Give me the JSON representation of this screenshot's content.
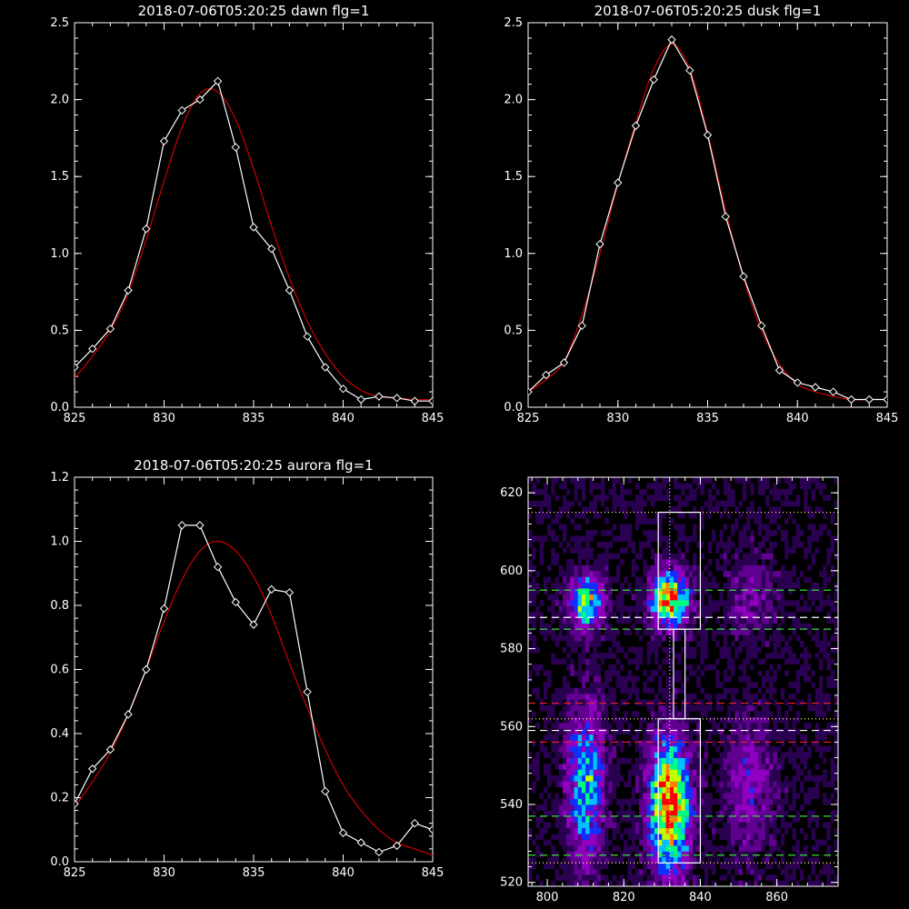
{
  "chart_data": [
    {
      "type": "line",
      "title": "2018-07-06T05:20:25 dawn flg=1",
      "xlim": [
        825,
        845
      ],
      "ylim": [
        0,
        2.5
      ],
      "xticks": [
        "825",
        "830",
        "835",
        "840",
        "845"
      ],
      "yticks": [
        "0.0",
        "0.5",
        "1.0",
        "1.5",
        "2.0",
        "2.5"
      ],
      "series": [
        {
          "x": [
            825,
            826,
            827,
            828,
            829,
            830,
            831,
            832,
            833,
            834,
            835,
            836,
            837,
            838,
            839,
            840,
            841,
            842,
            843,
            844,
            845
          ],
          "values": [
            0.26,
            0.38,
            0.51,
            0.76,
            1.16,
            1.73,
            1.93,
            2.0,
            2.12,
            1.69,
            1.17,
            1.03,
            0.76,
            0.46,
            0.26,
            0.12,
            0.05,
            0.07,
            0.06,
            0.04,
            0.04
          ],
          "color": "#ffffff",
          "marker": "diamond"
        },
        {
          "x": [
            825,
            826,
            827,
            828,
            829,
            830,
            831,
            832,
            833,
            834,
            835,
            836,
            837,
            838,
            839,
            840,
            841,
            842,
            843,
            844,
            845
          ],
          "values": [
            0.19,
            0.33,
            0.5,
            0.74,
            1.09,
            1.47,
            1.82,
            2.04,
            2.05,
            1.87,
            1.55,
            1.18,
            0.84,
            0.56,
            0.35,
            0.2,
            0.11,
            0.07,
            0.06,
            0.05,
            0.05
          ],
          "color": "#cc0000"
        }
      ]
    },
    {
      "type": "line",
      "title": "2018-07-06T05:20:25 dusk flg=1",
      "xlim": [
        825,
        845
      ],
      "ylim": [
        0,
        2.5
      ],
      "xticks": [
        "825",
        "830",
        "835",
        "840",
        "845"
      ],
      "yticks": [
        "0.0",
        "0.5",
        "1.0",
        "1.5",
        "2.0",
        "2.5"
      ],
      "series": [
        {
          "x": [
            825,
            826,
            827,
            828,
            829,
            830,
            831,
            832,
            833,
            834,
            835,
            836,
            837,
            838,
            839,
            840,
            841,
            842,
            843,
            844,
            845
          ],
          "values": [
            0.1,
            0.21,
            0.29,
            0.53,
            1.06,
            1.46,
            1.83,
            2.13,
            2.39,
            2.19,
            1.77,
            1.24,
            0.85,
            0.53,
            0.24,
            0.16,
            0.13,
            0.1,
            0.05,
            0.05,
            0.05
          ],
          "color": "#ffffff",
          "marker": "diamond"
        },
        {
          "x": [
            825,
            826,
            827,
            828,
            829,
            830,
            831,
            832,
            833,
            834,
            835,
            836,
            837,
            838,
            839,
            840,
            841,
            842,
            843,
            844,
            845
          ],
          "values": [
            0.1,
            0.18,
            0.3,
            0.6,
            1.0,
            1.45,
            1.85,
            2.2,
            2.36,
            2.2,
            1.78,
            1.28,
            0.84,
            0.5,
            0.28,
            0.15,
            0.1,
            0.07,
            0.05,
            0.05,
            0.05
          ],
          "color": "#cc0000"
        }
      ]
    },
    {
      "type": "line",
      "title": "2018-07-06T05:20:25 aurora flg=1",
      "xlim": [
        825,
        845
      ],
      "ylim": [
        0,
        1.2
      ],
      "xticks": [
        "825",
        "830",
        "835",
        "840",
        "845"
      ],
      "yticks": [
        "0.0",
        "0.2",
        "0.4",
        "0.6",
        "0.8",
        "1.0",
        "1.2"
      ],
      "series": [
        {
          "x": [
            825,
            826,
            827,
            828,
            829,
            830,
            831,
            832,
            833,
            834,
            835,
            836,
            837,
            838,
            839,
            840,
            841,
            842,
            843,
            844,
            845
          ],
          "values": [
            0.18,
            0.29,
            0.35,
            0.46,
            0.6,
            0.79,
            1.05,
            1.05,
            0.92,
            0.81,
            0.74,
            0.85,
            0.84,
            0.53,
            0.22,
            0.09,
            0.06,
            0.03,
            0.05,
            0.12,
            0.1
          ],
          "color": "#ffffff",
          "marker": "diamond"
        },
        {
          "x": [
            825,
            826,
            827,
            828,
            829,
            830,
            831,
            832,
            833,
            834,
            835,
            836,
            837,
            838,
            839,
            840,
            841,
            842,
            843,
            844,
            845
          ],
          "values": [
            0.17,
            0.25,
            0.34,
            0.46,
            0.6,
            0.75,
            0.88,
            0.97,
            1.0,
            0.97,
            0.89,
            0.77,
            0.62,
            0.48,
            0.35,
            0.24,
            0.16,
            0.1,
            0.06,
            0.04,
            0.02
          ],
          "color": "#cc0000"
        }
      ]
    },
    {
      "type": "heatmap",
      "title": "",
      "xlim": [
        795,
        876
      ],
      "ylim": [
        519,
        624
      ],
      "xticks": [
        "800",
        "820",
        "840",
        "860"
      ],
      "yticks": [
        "520",
        "540",
        "560",
        "580",
        "600",
        "620"
      ],
      "colormap": [
        "#000000",
        "#2a0050",
        "#600090",
        "#9000c0",
        "#1030ff",
        "#00c0ff",
        "#00ff80",
        "#c0ff00",
        "#ff8000",
        "#ff0000"
      ],
      "blobs": [
        {
          "x": 810,
          "y": 592,
          "sx": 3.2,
          "sy": 5,
          "amp": 0.58
        },
        {
          "x": 832,
          "y": 593,
          "sx": 3.6,
          "sy": 5,
          "amp": 0.78
        },
        {
          "x": 810,
          "y": 545,
          "sx": 3.5,
          "sy": 14,
          "amp": 0.5
        },
        {
          "x": 832,
          "y": 540,
          "sx": 3.8,
          "sy": 12,
          "amp": 0.86
        },
        {
          "x": 853,
          "y": 594,
          "sx": 4.5,
          "sy": 7,
          "amp": 0.2
        },
        {
          "x": 853,
          "y": 545,
          "sx": 4.5,
          "sy": 12,
          "amp": 0.26
        }
      ],
      "boxes": [
        {
          "x1": 829,
          "x2": 840,
          "y1": 585,
          "y2": 615
        },
        {
          "x1": 833,
          "x2": 836,
          "y1": 562,
          "y2": 585
        },
        {
          "x1": 829,
          "x2": 840,
          "y1": 525,
          "y2": 562
        }
      ],
      "hlines": [
        {
          "y": 615,
          "color": "#ffff66",
          "style": "dotted"
        },
        {
          "y": 595,
          "color": "#33dd33",
          "style": "dashed"
        },
        {
          "y": 588,
          "color": "#ffffff",
          "style": "dashed"
        },
        {
          "y": 585,
          "color": "#33dd33",
          "style": "dashed"
        },
        {
          "y": 566,
          "color": "#ee2222",
          "style": "dashed"
        },
        {
          "y": 562,
          "color": "#ffff66",
          "style": "dotted"
        },
        {
          "y": 559,
          "color": "#ffffff",
          "style": "dashed"
        },
        {
          "y": 556,
          "color": "#ee2222",
          "style": "dashed"
        },
        {
          "y": 537,
          "color": "#33dd33",
          "style": "dashed"
        },
        {
          "y": 527,
          "color": "#33dd33",
          "style": "dashed"
        },
        {
          "y": 525,
          "color": "#ffff66",
          "style": "dotted"
        }
      ],
      "vlines": [
        {
          "x": 832,
          "color": "#ffffff",
          "style": "dotted"
        }
      ]
    }
  ]
}
